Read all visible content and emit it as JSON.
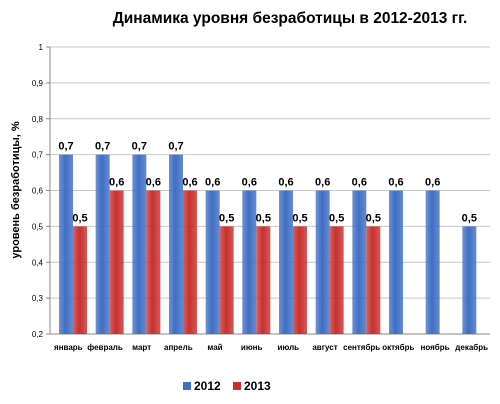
{
  "chart_data": {
    "type": "bar",
    "title": "Динамика уровня безработицы в 2012-2013 гг.",
    "ylabel": "уровень безработицы, %",
    "xlabel": "",
    "ylim": [
      0.2,
      1
    ],
    "yticks": [
      "0,2",
      "0,3",
      "0,4",
      "0,5",
      "0,6",
      "0,7",
      "0,8",
      "0,9",
      "1"
    ],
    "categories": [
      "январь",
      "февраль",
      "март",
      "апрель",
      "май",
      "июнь",
      "июль",
      "август",
      "сентябрь",
      "октябрь",
      "ноябрь",
      "декабрь"
    ],
    "series": [
      {
        "name": "2012",
        "color": "#3f6fc4",
        "values": [
          0.7,
          0.7,
          0.7,
          0.7,
          0.6,
          0.6,
          0.6,
          0.6,
          0.6,
          0.6,
          0.6,
          0.5
        ],
        "labels": [
          "0,7",
          "0,7",
          "0,7",
          "0,7",
          "0,6",
          "0,6",
          "0,6",
          "0,6",
          "0,6",
          "0,6",
          "0,6",
          "0,5"
        ]
      },
      {
        "name": "2013",
        "color": "#c8302e",
        "values": [
          0.5,
          0.6,
          0.6,
          0.6,
          0.5,
          0.5,
          0.5,
          0.5,
          0.5,
          null,
          null,
          null
        ],
        "labels": [
          "0,5",
          "0,6",
          "0,6",
          "0,6",
          "0,5",
          "0,5",
          "0,5",
          "0,5",
          "0,5",
          "",
          "",
          ""
        ]
      }
    ],
    "grid": true,
    "legend": "bottom"
  }
}
